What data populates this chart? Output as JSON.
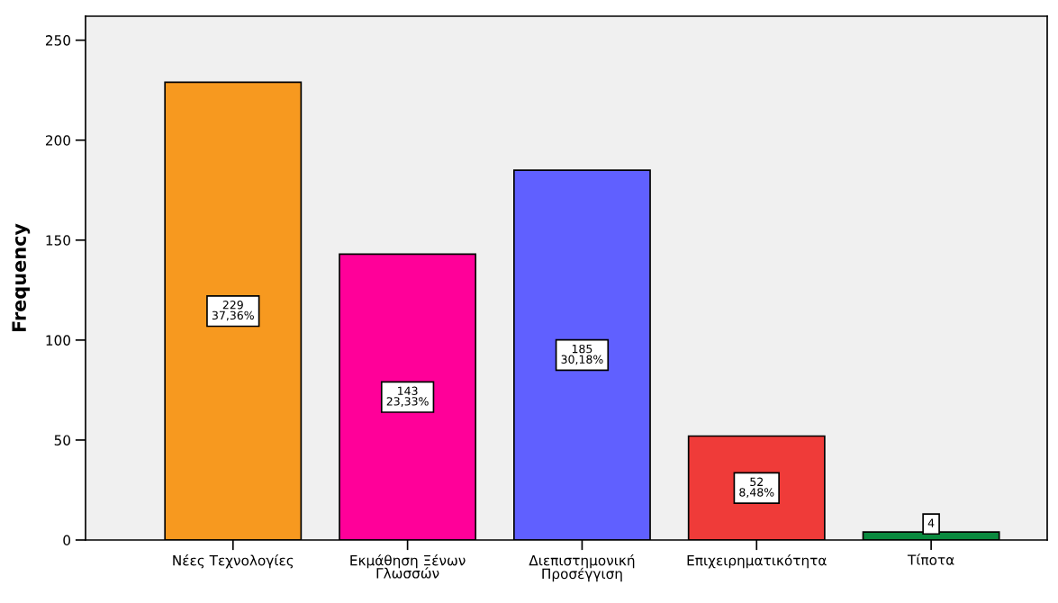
{
  "chart_data": {
    "type": "bar",
    "ylabel": "Frequency",
    "categories": [
      "Νέες Τεχνολογίες",
      "Εκμάθηση Ξένων\nΓλωσσών",
      "Διεπιστημονική\nΠροσέγγιση",
      "Επιχειρηματικότητα",
      "Τίποτα"
    ],
    "values": [
      229,
      143,
      185,
      52,
      4
    ],
    "colors": [
      "#f7991f",
      "#ff0099",
      "#6060ff",
      "#ef3b39",
      "#0a8a3f"
    ],
    "value_labels": [
      "229\n37,36%",
      "143\n23,33%",
      "185\n30,18%",
      "52\n8,48%",
      "4"
    ],
    "ylim": [
      0,
      262
    ],
    "yticks": [
      0,
      50,
      100,
      150,
      200,
      250
    ],
    "grid": false,
    "legend": false
  }
}
